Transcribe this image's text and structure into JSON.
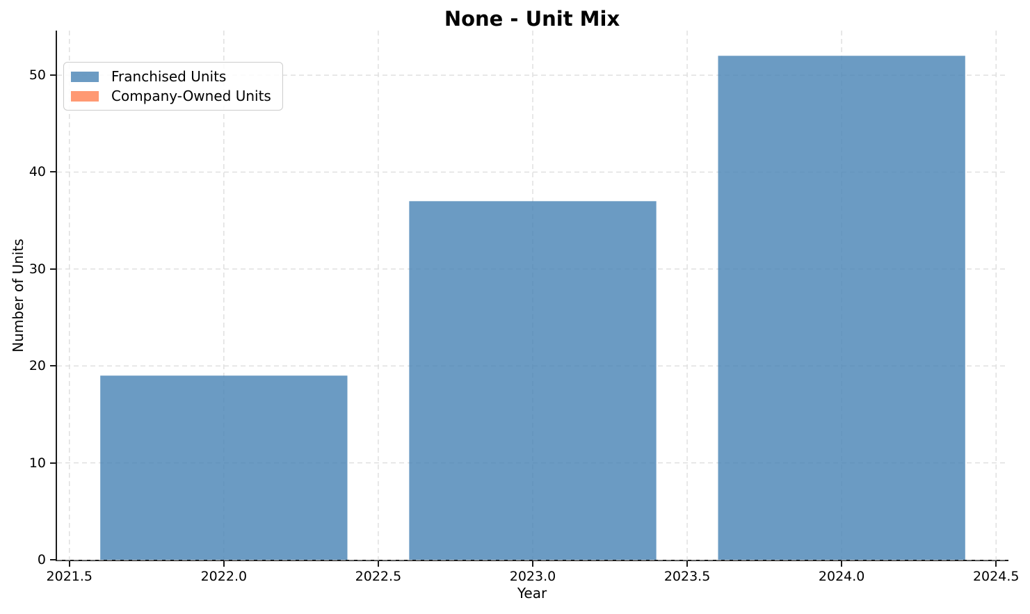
{
  "chart_data": {
    "type": "bar",
    "title": "None - Unit Mix",
    "xlabel": "Year",
    "ylabel": "Number of Units",
    "categories": [
      2022,
      2023,
      2024
    ],
    "series": [
      {
        "name": "Franchised Units",
        "color": "#4682B4",
        "alpha": 0.8,
        "values": [
          19,
          37,
          52
        ]
      },
      {
        "name": "Company-Owned Units",
        "color": "#FF7F50",
        "alpha": 0.8,
        "values": [
          0,
          0,
          0
        ]
      }
    ],
    "stacked": true,
    "bar_width": 0.8,
    "xlim": [
      2021.46,
      2024.54
    ],
    "ylim": [
      0,
      54.6
    ],
    "xticks": [
      {
        "v": 2021.5,
        "label": "2021.5"
      },
      {
        "v": 2022.0,
        "label": "2022.0"
      },
      {
        "v": 2022.5,
        "label": "2022.5"
      },
      {
        "v": 2023.0,
        "label": "2023.0"
      },
      {
        "v": 2023.5,
        "label": "2023.5"
      },
      {
        "v": 2024.0,
        "label": "2024.0"
      },
      {
        "v": 2024.5,
        "label": "2024.5"
      }
    ],
    "yticks": [
      {
        "v": 0,
        "label": "0"
      },
      {
        "v": 10,
        "label": "10"
      },
      {
        "v": 20,
        "label": "20"
      },
      {
        "v": 30,
        "label": "30"
      },
      {
        "v": 40,
        "label": "40"
      },
      {
        "v": 50,
        "label": "50"
      }
    ],
    "grid": {
      "on": true,
      "style": "dashed",
      "color": "#e0e0e0"
    },
    "legend": {
      "position": "upper left"
    },
    "axis": {
      "spine_color": "#1a1a1a",
      "text_color": "#000000"
    }
  }
}
